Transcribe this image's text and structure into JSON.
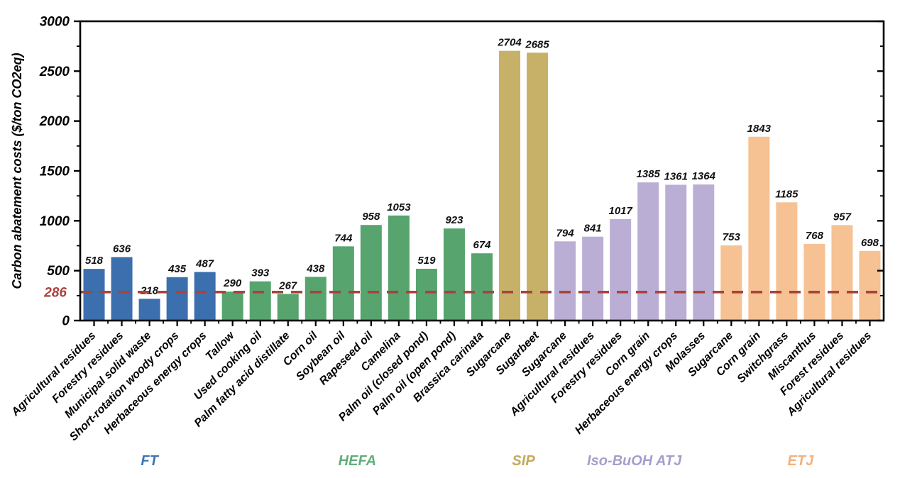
{
  "figure": {
    "title": "",
    "background": "#ffffff"
  },
  "chart_data": {
    "type": "bar",
    "title": "",
    "xlabel": "",
    "ylabel": "Carbon abatement costs ($/ton CO2eq)",
    "ylim": [
      0,
      3000
    ],
    "ytick_major": 500,
    "ytick_minor": 250,
    "yticks": [
      0,
      500,
      1000,
      1500,
      2000,
      2500,
      3000
    ],
    "grid": false,
    "legend_position": "none",
    "threshold_line": {
      "value": 286,
      "label": "286",
      "color": "#A8433C",
      "style": "dashed"
    },
    "axis_color": "#000000",
    "value_label_color": "#111111",
    "groups": [
      {
        "name": "FT",
        "bar_color": "#3C6FAD",
        "label_color": "#3D74B4"
      },
      {
        "name": "HEFA",
        "bar_color": "#57A46E",
        "label_color": "#60AE79"
      },
      {
        "name": "SIP",
        "bar_color": "#C7B169",
        "label_color": "#C3AA5C"
      },
      {
        "name": "Iso-BuOH ATJ",
        "bar_color": "#BBAED5",
        "label_color": "#A79DCC"
      },
      {
        "name": "ETJ",
        "bar_color": "#F6C193",
        "label_color": "#F2B17C"
      }
    ],
    "bars": [
      {
        "label": "Agricultural residues",
        "value": 518,
        "group": "FT"
      },
      {
        "label": "Forestry residues",
        "value": 636,
        "group": "FT"
      },
      {
        "label": "Municipal solid waste",
        "value": 218,
        "group": "FT"
      },
      {
        "label": "Short-rotation woody crops",
        "value": 435,
        "group": "FT"
      },
      {
        "label": "Herbaceous energy crops",
        "value": 487,
        "group": "FT"
      },
      {
        "label": "Tallow",
        "value": 290,
        "group": "HEFA"
      },
      {
        "label": "Used cooking oil",
        "value": 393,
        "group": "HEFA"
      },
      {
        "label": "Palm fatty acid distillate",
        "value": 267,
        "group": "HEFA"
      },
      {
        "label": "Corn oil",
        "value": 438,
        "group": "HEFA"
      },
      {
        "label": "Soybean oil",
        "value": 744,
        "group": "HEFA"
      },
      {
        "label": "Rapeseed oil",
        "value": 958,
        "group": "HEFA"
      },
      {
        "label": "Camelina",
        "value": 1053,
        "group": "HEFA"
      },
      {
        "label": "Palm oil (closed pond)",
        "value": 519,
        "group": "HEFA"
      },
      {
        "label": "Palm oil (open pond)",
        "value": 923,
        "group": "HEFA"
      },
      {
        "label": "Brassica carinata",
        "value": 674,
        "group": "HEFA"
      },
      {
        "label": "Sugarcane",
        "value": 2704,
        "group": "SIP"
      },
      {
        "label": "Sugarbeet",
        "value": 2685,
        "group": "SIP"
      },
      {
        "label": "Sugarcane",
        "value": 794,
        "group": "Iso-BuOH ATJ"
      },
      {
        "label": "Agricultural residues",
        "value": 841,
        "group": "Iso-BuOH ATJ"
      },
      {
        "label": "Forestry residues",
        "value": 1017,
        "group": "Iso-BuOH ATJ"
      },
      {
        "label": "Corn grain",
        "value": 1385,
        "group": "Iso-BuOH ATJ"
      },
      {
        "label": "Herbaceous energy crops",
        "value": 1361,
        "group": "Iso-BuOH ATJ"
      },
      {
        "label": "Molasses",
        "value": 1364,
        "group": "Iso-BuOH ATJ"
      },
      {
        "label": "Sugarcane",
        "value": 753,
        "group": "ETJ"
      },
      {
        "label": "Corn grain",
        "value": 1843,
        "group": "ETJ"
      },
      {
        "label": "Switchgrass",
        "value": 1185,
        "group": "ETJ"
      },
      {
        "label": "Miscanthus",
        "value": 768,
        "group": "ETJ"
      },
      {
        "label": "Forest residues",
        "value": 957,
        "group": "ETJ"
      },
      {
        "label": "Agricultural residues",
        "value": 698,
        "group": "ETJ"
      }
    ]
  }
}
